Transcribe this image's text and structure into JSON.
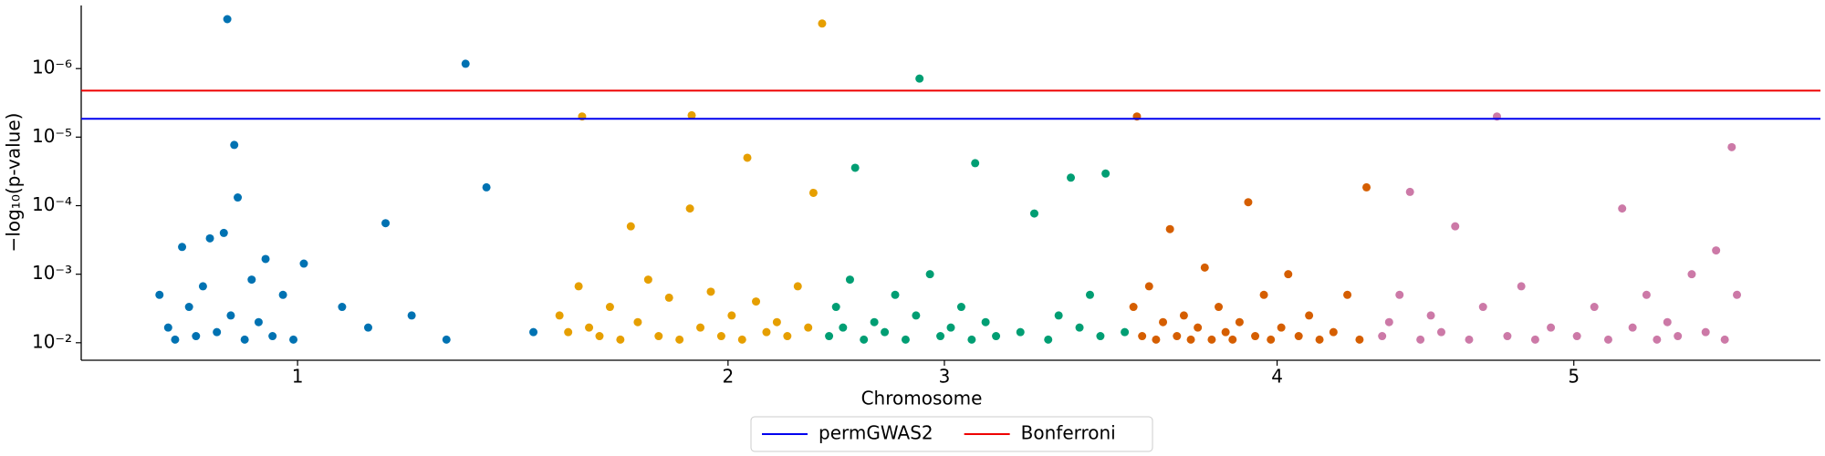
{
  "chart_data": {
    "type": "scatter",
    "xlabel": "Chromosome",
    "ylabel": "−log₁₀(p-value)",
    "xlim": [
      0,
      1000
    ],
    "xticks": [
      {
        "value": 124.4,
        "label": "1"
      },
      {
        "value": 371.9,
        "label": "2"
      },
      {
        "value": 496.3,
        "label": "3"
      },
      {
        "value": 687.6,
        "label": "4"
      },
      {
        "value": 858.2,
        "label": "5"
      }
    ],
    "log_y": true,
    "ylim": [
      0.018,
      1.2e-07
    ],
    "yticks": [
      {
        "value": 0.01,
        "label": "10⁻²"
      },
      {
        "value": 0.001,
        "label": "10⁻³"
      },
      {
        "value": 0.0001,
        "label": "10⁻⁴"
      },
      {
        "value": 1e-05,
        "label": "10⁻⁵"
      },
      {
        "value": 1e-06,
        "label": "10⁻⁶"
      }
    ],
    "grid": false,
    "legend": "bottom",
    "hlines": [
      {
        "name": "permGWAS2",
        "color": "#0000ee",
        "value": 5.4e-06
      },
      {
        "name": "Bonferroni",
        "color": "#ee0000",
        "value": 2.1e-06
      }
    ],
    "series": [
      {
        "color": "#0072b2",
        "x": [
          45,
          50,
          54,
          58,
          62,
          66,
          70,
          74,
          78,
          82,
          84,
          86,
          88,
          90,
          94,
          98,
          102,
          106,
          110,
          116,
          122,
          128,
          150,
          165,
          175,
          190,
          210,
          221,
          233,
          260
        ],
        "values": [
          0.002,
          0.006,
          0.009,
          0.0004,
          0.003,
          0.008,
          0.0015,
          0.0003,
          0.007,
          0.00025,
          1.9e-07,
          0.004,
          1.3e-05,
          7.6e-05,
          0.009,
          0.0012,
          0.005,
          0.0006,
          0.008,
          0.002,
          0.009,
          0.0007,
          0.003,
          0.006,
          0.00018,
          0.004,
          0.009,
          8.5e-07,
          5.4e-05,
          0.007
        ]
      },
      {
        "color": "#e69f00",
        "x": [
          275,
          280,
          286,
          288,
          292,
          298,
          304,
          310,
          316,
          320,
          326,
          332,
          338,
          344,
          350,
          351,
          356,
          362,
          368,
          374,
          380,
          383,
          388,
          394,
          400,
          406,
          412,
          418,
          421,
          426
        ],
        "values": [
          0.004,
          0.007,
          0.0015,
          5e-06,
          0.006,
          0.008,
          0.003,
          0.009,
          0.0002,
          0.005,
          0.0012,
          0.008,
          0.0022,
          0.009,
          0.00011,
          4.8e-06,
          0.006,
          0.0018,
          0.008,
          0.004,
          0.009,
          2e-05,
          0.0025,
          0.007,
          0.005,
          0.008,
          0.0015,
          0.006,
          6.5e-05,
          2.2e-07
        ]
      },
      {
        "color": "#009e73",
        "x": [
          430,
          434,
          438,
          442,
          445,
          450,
          456,
          462,
          468,
          474,
          480,
          482,
          488,
          494,
          500,
          506,
          512,
          514,
          520,
          526,
          540,
          548,
          556,
          562,
          569,
          574,
          580,
          586,
          589,
          600
        ],
        "values": [
          0.008,
          0.003,
          0.006,
          0.0012,
          2.8e-05,
          0.009,
          0.005,
          0.007,
          0.002,
          0.009,
          0.004,
          1.4e-06,
          0.001,
          0.008,
          0.006,
          0.003,
          0.009,
          2.4e-05,
          0.005,
          0.008,
          0.007,
          0.00013,
          0.009,
          0.004,
          3.9e-05,
          0.006,
          0.002,
          0.008,
          3.4e-05,
          0.007
        ]
      },
      {
        "color": "#d55e00",
        "x": [
          605,
          607,
          610,
          614,
          618,
          622,
          626,
          630,
          634,
          638,
          642,
          646,
          650,
          654,
          658,
          662,
          666,
          671,
          675,
          680,
          684,
          690,
          694,
          700,
          706,
          712,
          720,
          728,
          735,
          739
        ],
        "values": [
          0.003,
          5e-06,
          0.008,
          0.0015,
          0.009,
          0.005,
          0.00022,
          0.008,
          0.004,
          0.009,
          0.006,
          0.0008,
          0.009,
          0.003,
          0.007,
          0.009,
          0.005,
          8.9e-05,
          0.008,
          0.002,
          0.009,
          0.006,
          0.001,
          0.008,
          0.004,
          0.009,
          0.007,
          0.002,
          0.009,
          5.4e-05
        ]
      },
      {
        "color": "#cc79a7",
        "x": [
          748,
          752,
          758,
          764,
          770,
          776,
          782,
          790,
          798,
          806,
          814,
          820,
          828,
          836,
          845,
          860,
          870,
          878,
          886,
          892,
          900,
          906,
          912,
          918,
          926,
          934,
          940,
          945,
          949,
          952
        ],
        "values": [
          0.008,
          0.005,
          0.002,
          6.3e-05,
          0.009,
          0.004,
          0.007,
          0.0002,
          0.009,
          0.003,
          5e-06,
          0.008,
          0.0015,
          0.009,
          0.006,
          0.008,
          0.003,
          0.009,
          0.00011,
          0.006,
          0.002,
          0.009,
          0.005,
          0.008,
          0.001,
          0.007,
          0.00045,
          0.009,
          1.4e-05,
          0.002
        ]
      }
    ]
  }
}
